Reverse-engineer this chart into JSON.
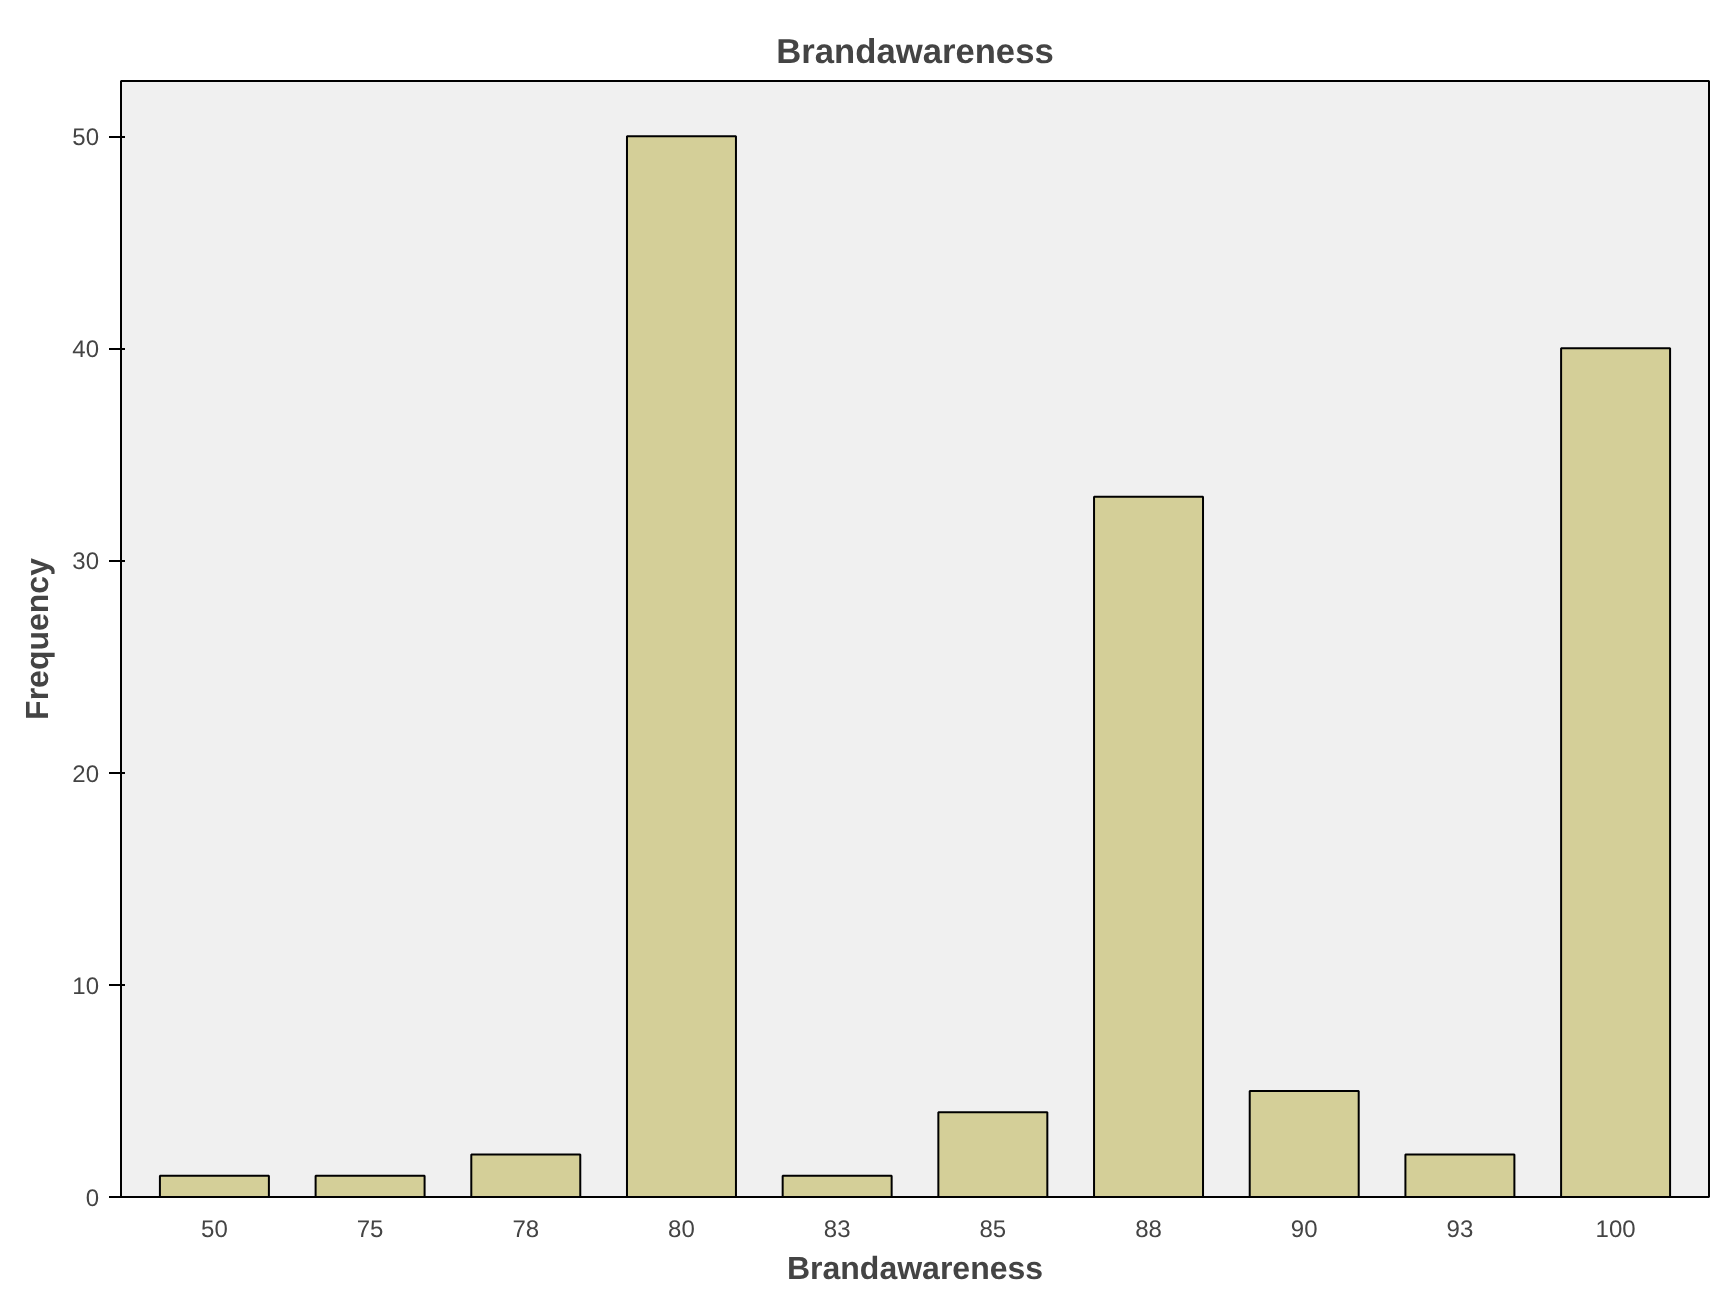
{
  "chart_data": {
    "type": "bar",
    "title": "Brandawareness",
    "xlabel": "Brandawareness",
    "ylabel": "Frequency",
    "categories": [
      "50",
      "75",
      "78",
      "80",
      "83",
      "85",
      "88",
      "90",
      "93",
      "100"
    ],
    "values": [
      1,
      1,
      2,
      50,
      1,
      4,
      33,
      5,
      2,
      40
    ],
    "color": "#d4cf98",
    "ylim": [
      0,
      52.6
    ],
    "yticks": [
      0,
      10,
      20,
      30,
      40,
      50
    ],
    "grid": false
  }
}
